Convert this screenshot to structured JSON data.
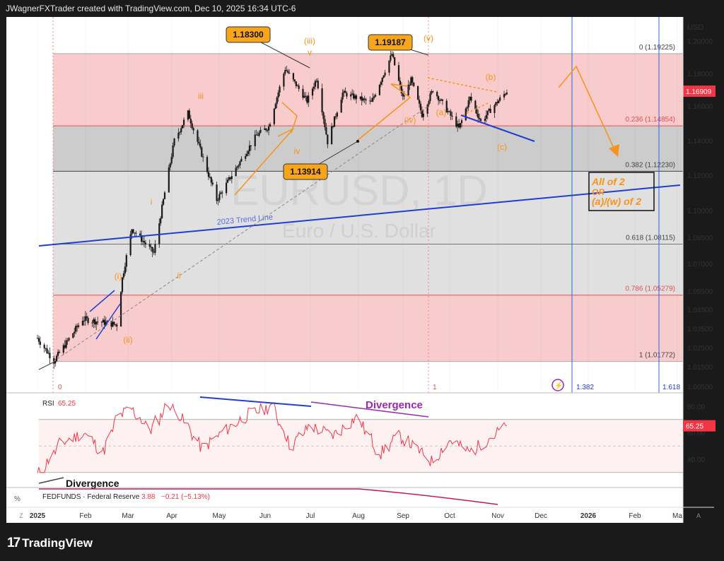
{
  "header": "JWagnerFXTrader created with TradingView.com, Dec 10, 2025 16:34 UTC-6",
  "brand": "TradingView",
  "brand_mark": "17",
  "price_axis": {
    "currency": "USD",
    "last_price": "1.16909",
    "ticks": [
      "1.20000",
      "1.18000",
      "1.16000",
      "1.14000",
      "1.12000",
      "1.10000",
      "1.08500",
      "1.07000",
      "1.05500",
      "1.04500",
      "1.03500",
      "1.02500",
      "1.01500",
      "1.00500"
    ]
  },
  "time_axis": [
    "2025",
    "Feb",
    "Mar",
    "Apr",
    "May",
    "Jun",
    "Jul",
    "Aug",
    "Sep",
    "Oct",
    "Nov",
    "Dec",
    "2026",
    "Feb",
    "Ma"
  ],
  "time_axis_z": "Z",
  "time_axis_a": "A",
  "watermark": {
    "symbol": "EURUSD, 1D",
    "name": "Euro / U.S. Dollar"
  },
  "fib_levels": [
    {
      "label": "0 (1.19225)",
      "value": 1.19225
    },
    {
      "label": "0.236 (1.14854)",
      "value": 1.14854
    },
    {
      "label": "0.382 (1.12230)",
      "value": 1.1223
    },
    {
      "label": "0.618 (1.08115)",
      "value": 1.08115
    },
    {
      "label": "0.786 (1.05279)",
      "value": 1.05279
    },
    {
      "label": "1 (1.01772)",
      "value": 1.01772
    }
  ],
  "fib_time": [
    "0",
    "1",
    "1.382",
    "1.618"
  ],
  "wave_labels": {
    "iii_minor": "(iii)",
    "v_small": "v",
    "v_minor": "(v)",
    "iii": "iii",
    "iv": "iv",
    "i": "i",
    "ii": "ii",
    "i_minor": "(i)",
    "ii_minor": "(ii)",
    "iv_minor": "(iv)",
    "a": "(a)",
    "b": "(b)",
    "c": "(c)"
  },
  "price_callouts": [
    "1.18300",
    "1.19187",
    "1.13914"
  ],
  "trend_line_label": "2023 Trend Line",
  "target_box": [
    "All of 2",
    "OR",
    "(a)/(w) of 2"
  ],
  "rsi": {
    "title": "RSI",
    "value": "65.25",
    "ticks": [
      "80.00",
      "60.00",
      "40.00"
    ],
    "divergence_top": "Divergence",
    "divergence_bottom": "Divergence"
  },
  "fedfunds": {
    "label": "FEDFUNDS · Federal Reserve",
    "value": "3.88",
    "change": "−0.21 (−5.13%)",
    "pct_sign": "%"
  },
  "colors": {
    "up": "#089981",
    "down": "#f23645",
    "fib_red": "#f8cccc",
    "fib_gray": "#e0e0e0",
    "fib_dark": "#cccccc",
    "orange": "#f7931a",
    "blue": "#1e3fd0",
    "purple": "#9c27b0"
  },
  "chart_data": {
    "type": "candlestick",
    "symbol": "EURUSD",
    "timeframe": "1D",
    "y_unit": "USD",
    "anchors": [
      {
        "date": "2025-01-13",
        "price": 1.018
      },
      {
        "date": "2025-02-03",
        "price": 1.04
      },
      {
        "date": "2025-02-28",
        "price": 1.037
      },
      {
        "date": "2025-03-04",
        "price": 1.062
      },
      {
        "date": "2025-03-11",
        "price": 1.09
      },
      {
        "date": "2025-03-27",
        "price": 1.076
      },
      {
        "date": "2025-04-11",
        "price": 1.14
      },
      {
        "date": "2025-04-21",
        "price": 1.156
      },
      {
        "date": "2025-05-12",
        "price": 1.106
      },
      {
        "date": "2025-06-10",
        "price": 1.143
      },
      {
        "date": "2025-06-19",
        "price": 1.148
      },
      {
        "date": "2025-07-01",
        "price": 1.183
      },
      {
        "date": "2025-07-17",
        "price": 1.163
      },
      {
        "date": "2025-07-24",
        "price": 1.177
      },
      {
        "date": "2025-08-01",
        "price": 1.13914
      },
      {
        "date": "2025-08-12",
        "price": 1.168
      },
      {
        "date": "2025-09-02",
        "price": 1.162
      },
      {
        "date": "2025-09-17",
        "price": 1.19187
      },
      {
        "date": "2025-09-25",
        "price": 1.165
      },
      {
        "date": "2025-10-01",
        "price": 1.176
      },
      {
        "date": "2025-10-09",
        "price": 1.155
      },
      {
        "date": "2025-10-17",
        "price": 1.17
      },
      {
        "date": "2025-11-05",
        "price": 1.147
      },
      {
        "date": "2025-11-13",
        "price": 1.165
      },
      {
        "date": "2025-11-21",
        "price": 1.151
      },
      {
        "date": "2025-12-10",
        "price": 1.16909
      }
    ],
    "rsi_last": 65.25,
    "fedfunds_last": 3.88
  }
}
